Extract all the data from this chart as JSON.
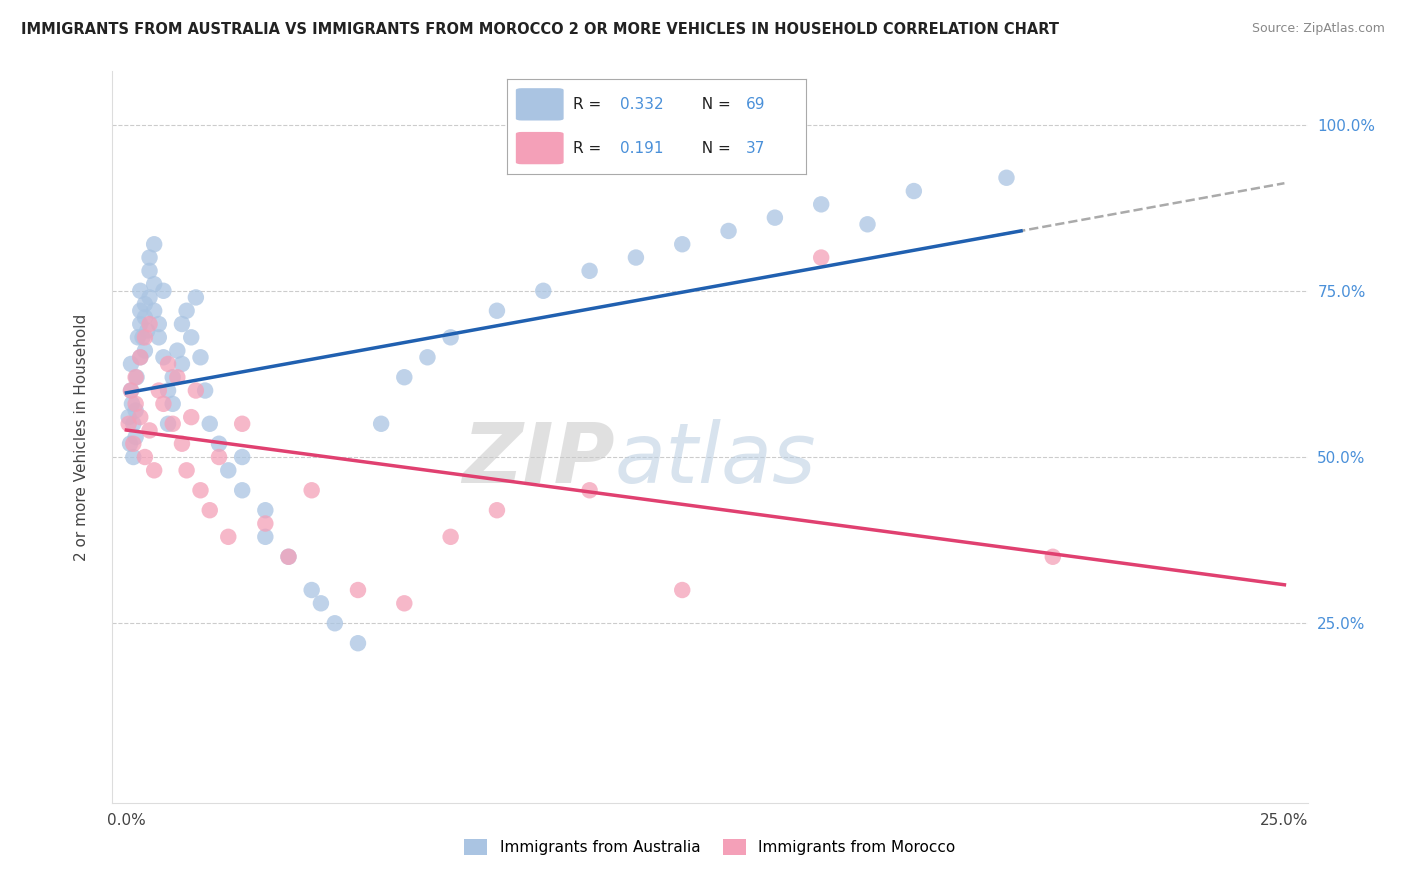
{
  "title": "IMMIGRANTS FROM AUSTRALIA VS IMMIGRANTS FROM MOROCCO 2 OR MORE VEHICLES IN HOUSEHOLD CORRELATION CHART",
  "source": "Source: ZipAtlas.com",
  "ylabel": "2 or more Vehicles in Household",
  "xlim": [
    0.0,
    0.25
  ],
  "ylim": [
    0.0,
    1.05
  ],
  "r_australia": 0.332,
  "n_australia": 69,
  "r_morocco": 0.191,
  "n_morocco": 37,
  "color_australia": "#aac4e2",
  "color_morocco": "#f4a0b8",
  "line_color_australia": "#2060b0",
  "line_color_morocco": "#e04070",
  "dash_color": "#aaaaaa",
  "australia_x": [
    0.0005,
    0.0008,
    0.001,
    0.001,
    0.0012,
    0.0015,
    0.0015,
    0.002,
    0.002,
    0.0022,
    0.0025,
    0.003,
    0.003,
    0.003,
    0.003,
    0.0035,
    0.004,
    0.004,
    0.004,
    0.0045,
    0.005,
    0.005,
    0.005,
    0.006,
    0.006,
    0.006,
    0.007,
    0.007,
    0.008,
    0.008,
    0.009,
    0.009,
    0.01,
    0.01,
    0.011,
    0.012,
    0.012,
    0.013,
    0.014,
    0.015,
    0.016,
    0.017,
    0.018,
    0.02,
    0.022,
    0.025,
    0.025,
    0.03,
    0.03,
    0.035,
    0.04,
    0.042,
    0.045,
    0.05,
    0.055,
    0.06,
    0.065,
    0.07,
    0.08,
    0.09,
    0.1,
    0.11,
    0.12,
    0.13,
    0.14,
    0.15,
    0.16,
    0.17,
    0.19
  ],
  "australia_y": [
    0.56,
    0.52,
    0.6,
    0.64,
    0.58,
    0.5,
    0.55,
    0.53,
    0.57,
    0.62,
    0.68,
    0.72,
    0.65,
    0.7,
    0.75,
    0.68,
    0.66,
    0.73,
    0.71,
    0.69,
    0.74,
    0.78,
    0.8,
    0.72,
    0.76,
    0.82,
    0.7,
    0.68,
    0.75,
    0.65,
    0.6,
    0.55,
    0.58,
    0.62,
    0.66,
    0.7,
    0.64,
    0.72,
    0.68,
    0.74,
    0.65,
    0.6,
    0.55,
    0.52,
    0.48,
    0.45,
    0.5,
    0.42,
    0.38,
    0.35,
    0.3,
    0.28,
    0.25,
    0.22,
    0.55,
    0.62,
    0.65,
    0.68,
    0.72,
    0.75,
    0.78,
    0.8,
    0.82,
    0.84,
    0.86,
    0.88,
    0.85,
    0.9,
    0.92
  ],
  "morocco_x": [
    0.0005,
    0.001,
    0.0015,
    0.002,
    0.002,
    0.003,
    0.003,
    0.004,
    0.004,
    0.005,
    0.005,
    0.006,
    0.007,
    0.008,
    0.009,
    0.01,
    0.011,
    0.012,
    0.013,
    0.014,
    0.015,
    0.016,
    0.018,
    0.02,
    0.022,
    0.025,
    0.03,
    0.035,
    0.04,
    0.05,
    0.06,
    0.07,
    0.08,
    0.1,
    0.12,
    0.15,
    0.2
  ],
  "morocco_y": [
    0.55,
    0.6,
    0.52,
    0.58,
    0.62,
    0.56,
    0.65,
    0.5,
    0.68,
    0.54,
    0.7,
    0.48,
    0.6,
    0.58,
    0.64,
    0.55,
    0.62,
    0.52,
    0.48,
    0.56,
    0.6,
    0.45,
    0.42,
    0.5,
    0.38,
    0.55,
    0.4,
    0.35,
    0.45,
    0.3,
    0.28,
    0.38,
    0.42,
    0.45,
    0.3,
    0.8,
    0.35
  ],
  "legend_australia_text": "R =  0.332   N = 69",
  "legend_morocco_text": "R =  0.191   N = 37"
}
